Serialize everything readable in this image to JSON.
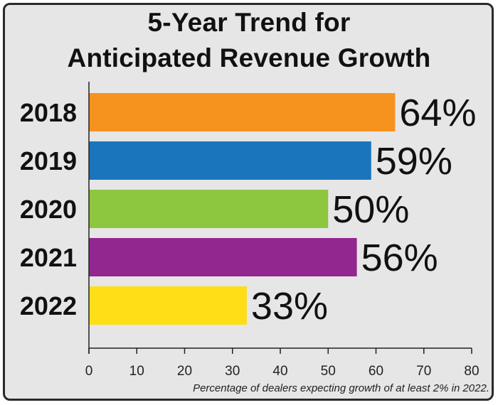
{
  "title_line1": "5-Year Trend for",
  "title_line2": "Anticipated Revenue Growth",
  "caption": "Percentage of dealers expecting growth of at least 2% in 2022.",
  "chart_data": {
    "type": "bar",
    "orientation": "horizontal",
    "title": "5-Year Trend for Anticipated Revenue Growth",
    "categories": [
      "2018",
      "2019",
      "2020",
      "2021",
      "2022"
    ],
    "values": [
      64,
      59,
      50,
      56,
      33
    ],
    "value_labels": [
      "64%",
      "59%",
      "50%",
      "56%",
      "33%"
    ],
    "colors": [
      "#f6921e",
      "#1b75bc",
      "#8dc63f",
      "#92278f",
      "#ffdd17"
    ],
    "xlim": [
      0,
      80
    ],
    "xticks": [
      0,
      10,
      20,
      30,
      40,
      50,
      60,
      70,
      80
    ],
    "grid": false,
    "legend": "none"
  }
}
